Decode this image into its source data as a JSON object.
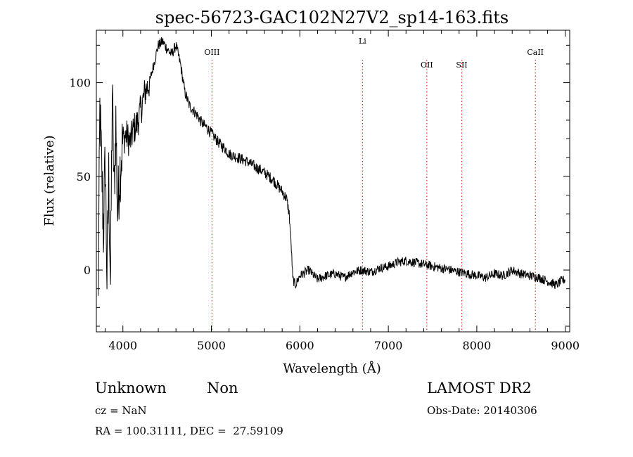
{
  "chart_data": {
    "type": "line",
    "title": "spec-56723-GAC102N27V2_sp14-163.fits",
    "xlabel": "Wavelength (Å)",
    "ylabel": "Flux (relative)",
    "xlim": [
      3700,
      9050
    ],
    "ylim": [
      -33,
      128
    ],
    "xticks": [
      4000,
      5000,
      6000,
      7000,
      8000,
      9000
    ],
    "yticks": [
      0,
      50,
      100
    ],
    "xtick_labels": [
      "4000",
      "5000",
      "6000",
      "7000",
      "8000",
      "9000"
    ],
    "ytick_labels": [
      "0",
      "50",
      "100"
    ],
    "grid": false,
    "line_color": "#000000",
    "marker_color": "#e0302a",
    "series": [
      {
        "x": [
          3720,
          3740,
          3760,
          3780,
          3800,
          3820,
          3840,
          3860,
          3880,
          3900,
          3920,
          3940,
          3960,
          3980,
          4000,
          4040,
          4080,
          4120,
          4160,
          4200,
          4250,
          4300,
          4350,
          4400,
          4450,
          4500,
          4550,
          4600,
          4650,
          4700,
          4750,
          4800,
          4850,
          4900,
          4950,
          5000,
          5050,
          5100,
          5150,
          5200,
          5300,
          5400,
          5500,
          5600,
          5700,
          5750,
          5800,
          5850,
          5880,
          5900,
          5920,
          5950,
          6000,
          6100,
          6200,
          6300,
          6400,
          6500,
          6600,
          6700,
          6800,
          6900,
          7000,
          7100,
          7200,
          7300,
          7400,
          7500,
          7600,
          7700,
          7800,
          7900,
          8000,
          8100,
          8200,
          8300,
          8400,
          8500,
          8600,
          8700,
          8800,
          8900,
          8950,
          9000
        ],
        "y": [
          -20,
          85,
          55,
          20,
          60,
          -5,
          50,
          -8,
          95,
          40,
          80,
          30,
          50,
          60,
          70,
          72,
          68,
          75,
          78,
          85,
          95,
          100,
          110,
          120,
          122,
          118,
          115,
          120,
          110,
          95,
          88,
          85,
          82,
          78,
          76,
          73,
          70,
          67,
          65,
          62,
          60,
          58,
          55,
          52,
          48,
          45,
          42,
          38,
          30,
          15,
          -5,
          -8,
          -3,
          0,
          -5,
          -3,
          -2,
          -4,
          -1,
          0,
          -1,
          1,
          2,
          4,
          5,
          4,
          3,
          2,
          1,
          0,
          -1,
          -2,
          -3,
          -4,
          -2,
          -3,
          0,
          -2,
          -3,
          -4,
          -6,
          -8,
          -6,
          -5
        ]
      }
    ],
    "line_markers": [
      {
        "label": "OIII",
        "x": 5007
      },
      {
        "label": "Li",
        "x": 6708
      },
      {
        "label": "OII",
        "x": 7435
      },
      {
        "label": "SII",
        "x": 7830
      },
      {
        "label": "CaII",
        "x": 8662
      }
    ]
  },
  "info": {
    "class": "Unknown",
    "subclass": "Non",
    "survey": "LAMOST DR2",
    "cz": "cz = NaN",
    "obs_date": "Obs-Date: 20140306",
    "coords": "RA = 100.31111, DEC =  27.59109"
  }
}
